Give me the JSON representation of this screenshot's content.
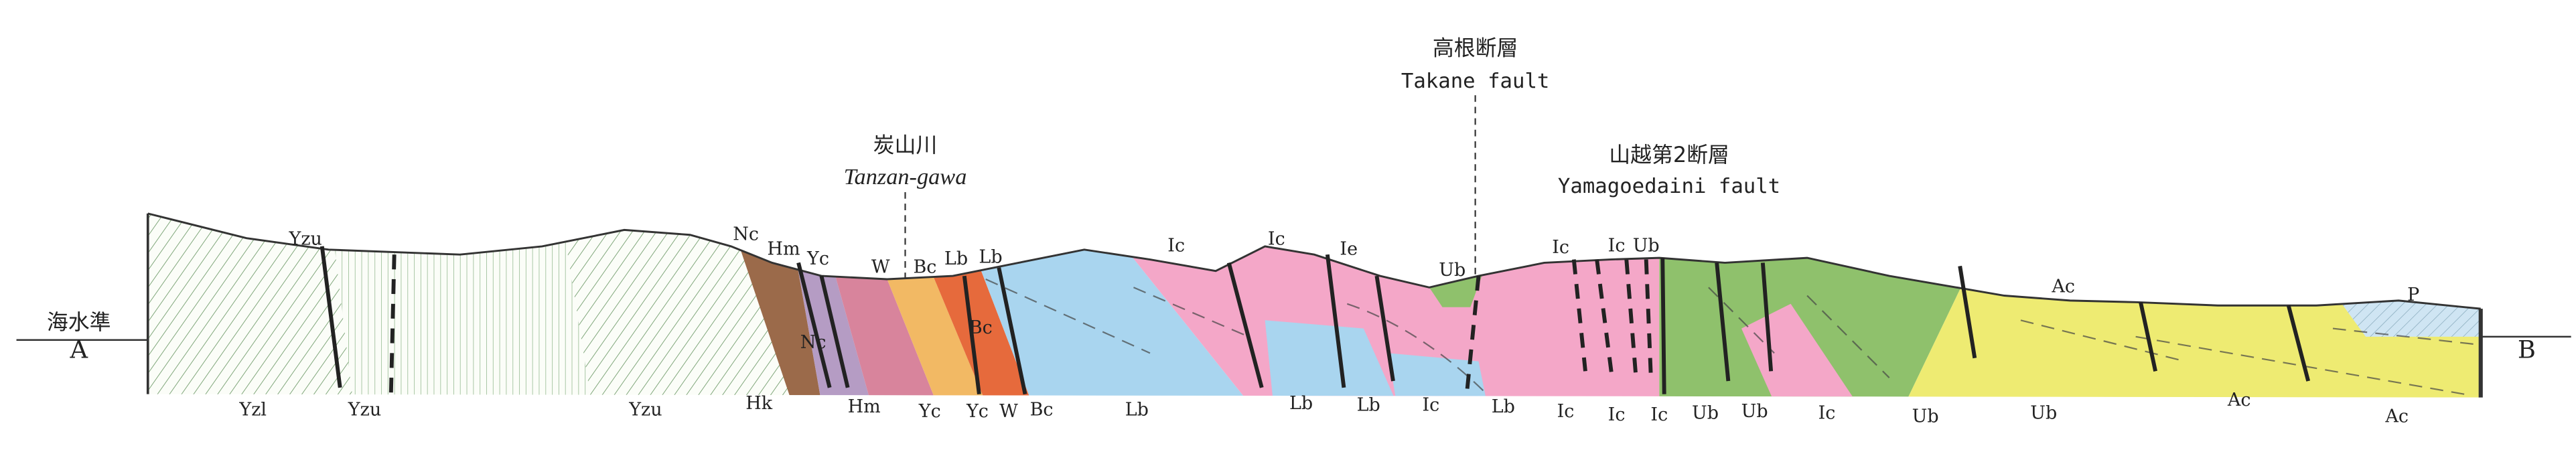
{
  "sea_level": "海水準",
  "end_a": "A",
  "end_b": "B",
  "annotations": [
    {
      "ja": "炭山川",
      "en": "Tanzan-gawa"
    },
    {
      "ja": "高根断層",
      "en": "Takane fault"
    },
    {
      "ja": "山越第2断層",
      "en": "Yamagoedaini fault"
    }
  ],
  "surface_labels": [
    "Yzu",
    "Nc",
    "Hm",
    "Yc",
    "W",
    "Bc",
    "Lb",
    "Lb",
    "Ic",
    "Ic",
    "Ie",
    "Ub",
    "Ic",
    "Ic",
    "Ub",
    "Ac",
    "P"
  ],
  "inner_labels": [
    "Nc",
    "Bc"
  ],
  "base_labels": [
    "Yzl",
    "Yzu",
    "Yzu",
    "Hk",
    "Hm",
    "Yc",
    "Yc",
    "W",
    "Bc",
    "Lb",
    "Lb",
    "Lb",
    "Ic",
    "Lb",
    "Ic",
    "Ic",
    "Ic",
    "Ub",
    "Ub",
    "Ic",
    "Ub",
    "Ub",
    "Ac",
    "Ac"
  ]
}
